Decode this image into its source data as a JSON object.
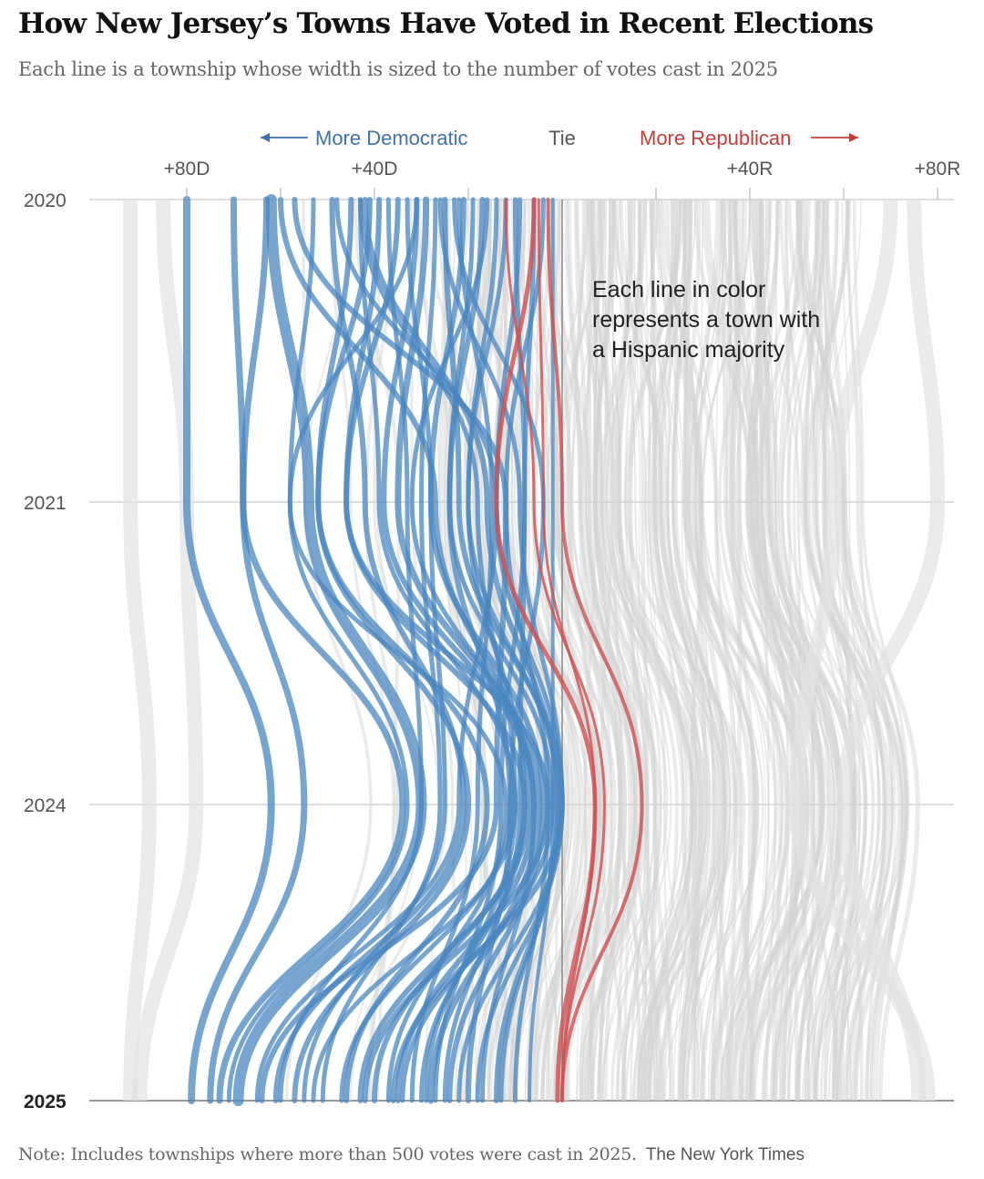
{
  "title": "How New Jersey’s Towns Have Voted in Recent Elections",
  "subtitle": "Each line is a township whose width is sized to the number of votes cast in 2025",
  "footer": {
    "note": "Note: Includes townships where more than 500 votes were cast in 2025.",
    "credit": "The New York Times"
  },
  "chart_data": {
    "type": "line",
    "orientation": "vertical",
    "direction_labels": {
      "left": "More Democratic",
      "center": "Tie",
      "right": "More Republican"
    },
    "x_ticks": [
      {
        "value": -80,
        "label": "+80D"
      },
      {
        "value": -60,
        "label": ""
      },
      {
        "value": -40,
        "label": "+40D"
      },
      {
        "value": -20,
        "label": ""
      },
      {
        "value": 0,
        "label": ""
      },
      {
        "value": 20,
        "label": ""
      },
      {
        "value": 40,
        "label": "+40R"
      },
      {
        "value": 60,
        "label": ""
      },
      {
        "value": 80,
        "label": "+80R"
      }
    ],
    "xlim": [
      -100,
      83
    ],
    "years": [
      {
        "label": "2020",
        "bold": false
      },
      {
        "label": "2021",
        "bold": false
      },
      {
        "label": "2024",
        "bold": false
      },
      {
        "label": "2025",
        "bold": true
      }
    ],
    "annotation": "Each line in color represents a town with a Hispanic majority",
    "colors": {
      "democratic": "#4a87c0",
      "republican": "#d05050",
      "background_towns": "#d3d3d3",
      "axis": "#bbbbbb",
      "tie_line": "#888888"
    },
    "highlight_series": [
      {
        "margins": [
          -80,
          -80,
          -62,
          -79
        ],
        "weight": 8
      },
      {
        "margins": [
          -70,
          -68,
          -55,
          -75
        ],
        "weight": 7
      },
      {
        "margins": [
          -63,
          -68,
          -34,
          -73
        ],
        "weight": 7
      },
      {
        "margins": [
          -62,
          -54,
          -30,
          -69
        ],
        "weight": 12
      },
      {
        "margins": [
          -53,
          -58,
          -33,
          -71
        ],
        "weight": 5
      },
      {
        "margins": [
          -49,
          -42,
          -21,
          -61
        ],
        "weight": 6
      },
      {
        "margins": [
          -45,
          -52,
          -20,
          -57
        ],
        "weight": 6
      },
      {
        "margins": [
          -43,
          -39,
          -10,
          -53
        ],
        "weight": 5
      },
      {
        "margins": [
          -41,
          -52,
          -16,
          -46
        ],
        "weight": 6
      },
      {
        "margins": [
          -39,
          -46,
          -8,
          -40
        ],
        "weight": 6
      },
      {
        "margins": [
          -37,
          -33,
          -30,
          -60
        ],
        "weight": 5
      },
      {
        "margins": [
          -35,
          -46,
          -3,
          -42
        ],
        "weight": 6
      },
      {
        "margins": [
          -33,
          -28,
          -25,
          -55
        ],
        "weight": 5
      },
      {
        "margins": [
          -31,
          -38,
          -6,
          -35
        ],
        "weight": 6
      },
      {
        "margins": [
          -29,
          -35,
          -5,
          -28
        ],
        "weight": 7
      },
      {
        "margins": [
          -27,
          -30,
          -26,
          -51
        ],
        "weight": 5
      },
      {
        "margins": [
          -25,
          -22,
          0,
          -36
        ],
        "weight": 6
      },
      {
        "margins": [
          -22,
          -15,
          -18,
          -32
        ],
        "weight": 5
      },
      {
        "margins": [
          -21,
          -28,
          -4,
          -24
        ],
        "weight": 6
      },
      {
        "margins": [
          -19,
          -24,
          -2,
          -34
        ],
        "weight": 5
      },
      {
        "margins": [
          -17,
          -24,
          -11,
          -20
        ],
        "weight": 6
      },
      {
        "margins": [
          -14,
          -20,
          -8,
          -30
        ],
        "weight": 5
      },
      {
        "margins": [
          -12,
          -20,
          -1,
          -13
        ],
        "weight": 5
      },
      {
        "margins": [
          -10,
          -8,
          -13,
          -27
        ],
        "weight": 5
      },
      {
        "margins": [
          -9,
          -14,
          0,
          -22
        ],
        "weight": 5
      },
      {
        "margins": [
          -6,
          -8,
          -9,
          -25
        ],
        "weight": 5
      },
      {
        "margins": [
          -4,
          -12,
          -3,
          -10
        ],
        "weight": 5
      },
      {
        "margins": [
          -2,
          -2,
          -2,
          -7
        ],
        "weight": 4
      },
      {
        "margins": [
          -26,
          -9,
          0,
          -18
        ],
        "weight": 5
      },
      {
        "margins": [
          -48,
          -14,
          -22,
          -65
        ],
        "weight": 5
      },
      {
        "margins": [
          -42,
          -16,
          -1,
          -14
        ],
        "weight": 6
      },
      {
        "margins": [
          -16,
          -32,
          -6,
          -17
        ],
        "weight": 5
      },
      {
        "margins": [
          -57,
          -12,
          -14,
          -64
        ],
        "weight": 6
      },
      {
        "margins": [
          -43,
          -18,
          -10,
          -29
        ],
        "weight": 5
      },
      {
        "margins": [
          -23,
          -4,
          -11,
          -47
        ],
        "weight": 5
      },
      {
        "margins": [
          -31,
          -58,
          -12,
          -37
        ],
        "weight": 5
      },
      {
        "margins": [
          -60,
          -27,
          -7,
          -43
        ],
        "weight": 6
      },
      {
        "margins": [
          -5,
          -4,
          7,
          0
        ],
        "weight": 3,
        "party": "R"
      },
      {
        "margins": [
          -3,
          0,
          17,
          0
        ],
        "weight": 4,
        "party": "R"
      },
      {
        "margins": [
          -12,
          -6,
          9,
          0
        ],
        "weight": 3,
        "party": "R"
      },
      {
        "margins": [
          -6,
          -14,
          7,
          -1
        ],
        "weight": 5,
        "party": "R"
      }
    ]
  }
}
